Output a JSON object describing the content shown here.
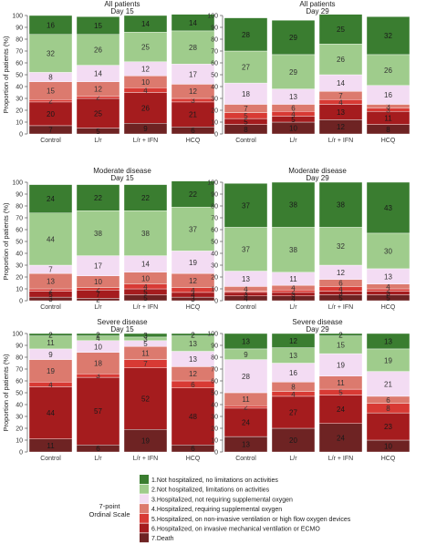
{
  "chart_data": {
    "type": "bar",
    "stacked": true,
    "ylabel": "Proportion of patients (%)",
    "ylim": [
      0,
      100
    ],
    "yticks": [
      0,
      10,
      20,
      30,
      40,
      50,
      60,
      70,
      80,
      90,
      100
    ],
    "grid": false,
    "legend_placement": "bottom",
    "legend_title": [
      "7-point",
      "Ordinal Scale"
    ],
    "categories": [
      "Control",
      "L/r",
      "L/r + IFN",
      "HCQ"
    ],
    "series_order_bottom_to_top": [
      "7",
      "6",
      "5",
      "4",
      "3",
      "2",
      "1"
    ],
    "legend": [
      {
        "key": "1",
        "label": "1.Not hospitalized, no limitations on activities",
        "color": "#3a7d30"
      },
      {
        "key": "2",
        "label": "2.Not hospitalized, limitations on activities",
        "color": "#9fcc8c"
      },
      {
        "key": "3",
        "label": "3.Hospitalized, not requiring supplemental oxygen",
        "color": "#f3dcf3"
      },
      {
        "key": "4",
        "label": "4.Hospitalized, requiring supplemental oxygen",
        "color": "#dc7a6e"
      },
      {
        "key": "5",
        "label": "5.Hospitalized, on non-invasive ventilation or high flow oxygen devices",
        "color": "#d83a34"
      },
      {
        "key": "6",
        "label": "6.Hospitalized, on invasive mechanical ventilation or ECMO",
        "color": "#a51c1e"
      },
      {
        "key": "7",
        "label": "7.Death",
        "color": "#6e2323"
      }
    ],
    "panels": [
      {
        "title": [
          "All patients",
          "Day 15"
        ],
        "bars": [
          {
            "category": "Control",
            "values": {
              "7": 7,
              "6": 20,
              "5": 2,
              "4": 15,
              "3": 8,
              "2": 32,
              "1": 16
            }
          },
          {
            "category": "L/r",
            "values": {
              "7": 5,
              "6": 25,
              "5": 2,
              "4": 12,
              "3": 14,
              "2": 26,
              "1": 15
            }
          },
          {
            "category": "L/r + IFN",
            "values": {
              "7": 9,
              "6": 26,
              "5": 4,
              "4": 10,
              "3": 12,
              "2": 25,
              "1": 14
            }
          },
          {
            "category": "HCQ",
            "values": {
              "7": 6,
              "6": 21,
              "5": 3,
              "4": 12,
              "3": 17,
              "2": 28,
              "1": 14
            }
          }
        ]
      },
      {
        "title": [
          "All patients",
          "Day 29"
        ],
        "bars": [
          {
            "category": "Control",
            "values": {
              "7": 8,
              "6": 5,
              "5": 5,
              "4": 7,
              "3": 18,
              "2": 27,
              "1": 28
            }
          },
          {
            "category": "L/r",
            "values": {
              "7": 10,
              "6": 5,
              "5": 4,
              "4": 6,
              "3": 13,
              "2": 29,
              "1": 29
            }
          },
          {
            "category": "L/r + IFN",
            "values": {
              "7": 12,
              "6": 13,
              "5": 4,
              "4": 7,
              "3": 14,
              "2": 26,
              "1": 25
            }
          },
          {
            "category": "HCQ",
            "values": {
              "7": 8,
              "6": 11,
              "5": 3,
              "4": 3,
              "3": 16,
              "2": 26,
              "1": 32
            }
          }
        ]
      },
      {
        "title": [
          "Moderate disease",
          "Day 15"
        ],
        "bars": [
          {
            "category": "Control",
            "values": {
              "7": 3,
              "6": 5,
              "5": 2,
              "4": 13,
              "3": 7,
              "2": 44,
              "1": 24
            }
          },
          {
            "category": "L/r",
            "values": {
              "7": 2,
              "6": 7,
              "5": 2,
              "4": 10,
              "3": 17,
              "2": 38,
              "1": 22
            }
          },
          {
            "category": "L/r + IFN",
            "values": {
              "7": 5,
              "6": 5,
              "5": 4,
              "4": 10,
              "3": 14,
              "2": 38,
              "1": 22
            }
          },
          {
            "category": "HCQ",
            "values": {
              "7": 3,
              "6": 4,
              "5": 4,
              "4": 12,
              "3": 19,
              "2": 37,
              "1": 22
            }
          }
        ]
      },
      {
        "title": [
          "Moderate disease",
          "Day 29"
        ],
        "bars": [
          {
            "category": "Control",
            "values": {
              "7": 4,
              "6": 3,
              "5": 1,
              "4": 4,
              "3": 13,
              "2": 37,
              "1": 37
            }
          },
          {
            "category": "L/r",
            "values": {
              "7": 4,
              "6": 3,
              "5": 2,
              "4": 4,
              "3": 11,
              "2": 38,
              "1": 38
            }
          },
          {
            "category": "L/r + IFN",
            "values": {
              "7": 5,
              "6": 3,
              "5": 4,
              "4": 6,
              "3": 12,
              "2": 32,
              "1": 38
            }
          },
          {
            "category": "HCQ",
            "values": {
              "7": 5,
              "6": 3,
              "5": 2,
              "4": 4,
              "3": 13,
              "2": 30,
              "1": 43
            }
          }
        ]
      },
      {
        "title": [
          "Severe disease",
          "Day 15"
        ],
        "bars": [
          {
            "category": "Control",
            "values": {
              "7": 11,
              "6": 44,
              "5": 4,
              "4": 19,
              "3": 9,
              "2": 11,
              "1": 2
            }
          },
          {
            "category": "L/r",
            "values": {
              "7": 6,
              "6": 57,
              "5": 3,
              "4": 18,
              "3": 10,
              "2": 4,
              "1": 2
            }
          },
          {
            "category": "L/r + IFN",
            "values": {
              "7": 19,
              "6": 52,
              "5": 7,
              "4": 11,
              "3": 5,
              "2": 3,
              "1": 3
            }
          },
          {
            "category": "HCQ",
            "values": {
              "7": 6,
              "6": 48,
              "5": 6,
              "4": 12,
              "3": 13,
              "2": 13,
              "1": 2
            }
          }
        ]
      },
      {
        "title": [
          "Severe disease",
          "Day 29"
        ],
        "bars": [
          {
            "category": "Control",
            "values": {
              "7": 13,
              "6": 24,
              "5": 2,
              "4": 11,
              "3": 28,
              "2": 9,
              "1": 13
            }
          },
          {
            "category": "L/r",
            "values": {
              "7": 20,
              "6": 27,
              "5": 4,
              "4": 8,
              "3": 16,
              "2": 13,
              "1": 12
            }
          },
          {
            "category": "L/r + IFN",
            "values": {
              "7": 24,
              "6": 24,
              "5": 5,
              "4": 11,
              "3": 19,
              "2": 15,
              "1": 2
            }
          },
          {
            "category": "HCQ",
            "values": {
              "7": 10,
              "6": 23,
              "5": 8,
              "4": 6,
              "3": 21,
              "2": 19,
              "1": 13
            }
          }
        ]
      }
    ]
  }
}
